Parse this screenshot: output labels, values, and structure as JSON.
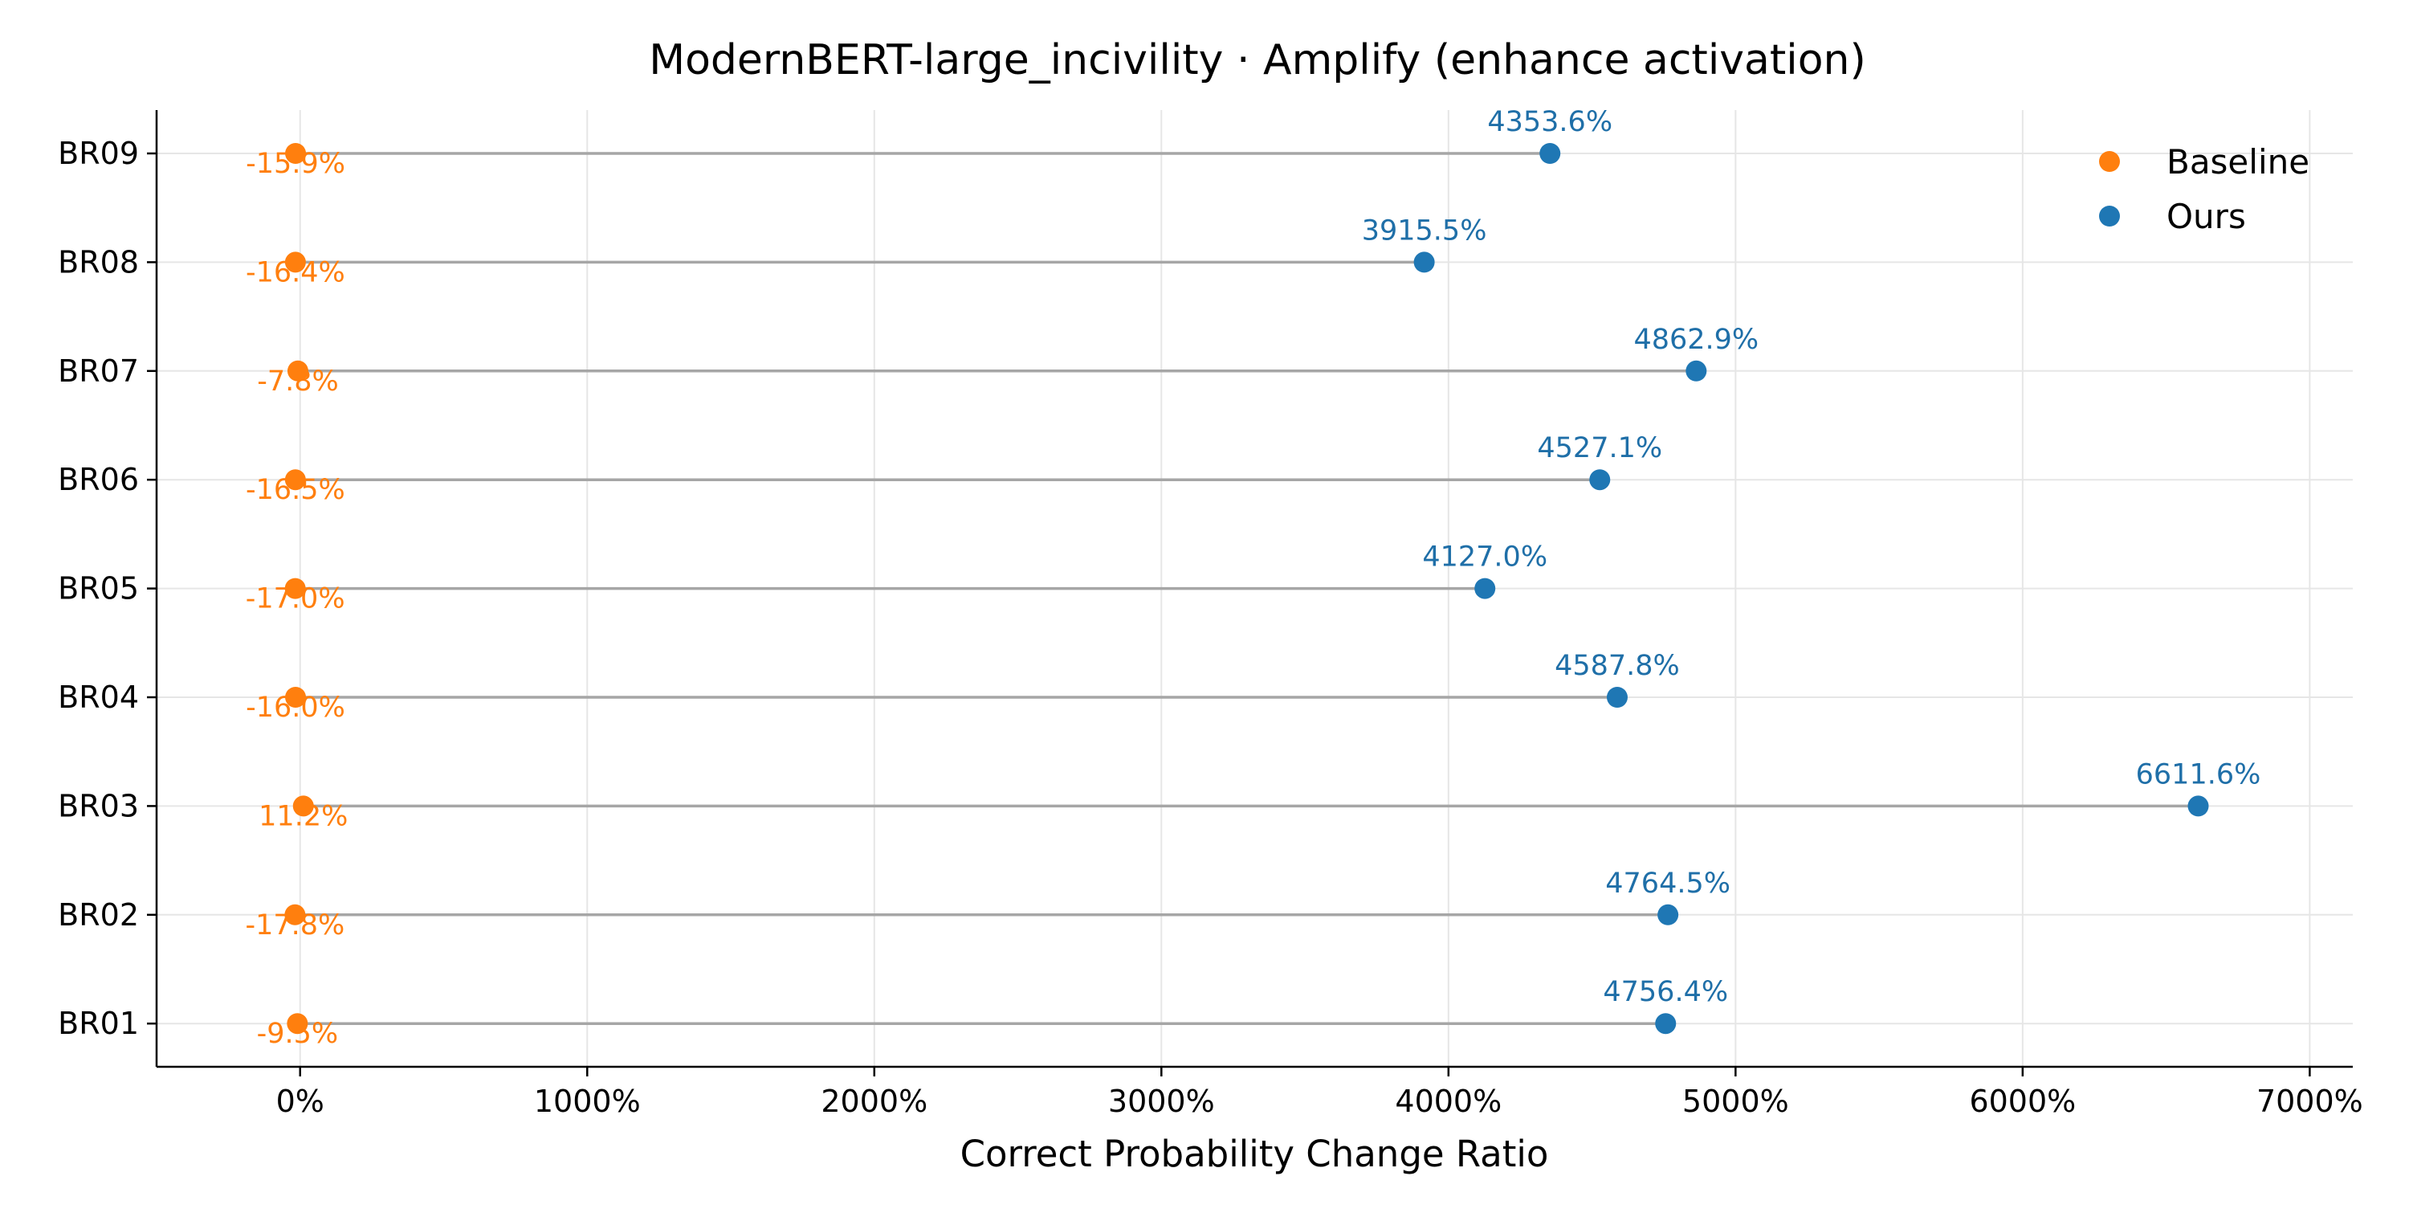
{
  "chart_data": {
    "type": "scatter",
    "subtype": "dumbbell",
    "title": "ModernBERT-large_incivility · Amplify (enhance activation)",
    "xlabel": "Correct Probability Change Ratio",
    "ylabel": "",
    "xlim": [
      -500,
      7150
    ],
    "x_ticks": [
      0,
      1000,
      2000,
      3000,
      4000,
      5000,
      6000,
      7000
    ],
    "x_tick_labels": [
      "0%",
      "1000%",
      "2000%",
      "3000%",
      "4000%",
      "5000%",
      "6000%",
      "7000%"
    ],
    "grid": true,
    "legend_position": "top-right",
    "categories": [
      "BR01",
      "BR02",
      "BR03",
      "BR04",
      "BR05",
      "BR06",
      "BR07",
      "BR08",
      "BR09"
    ],
    "series": [
      {
        "name": "Baseline",
        "color": "#ff7f0e",
        "values": [
          -9.5,
          -17.8,
          11.2,
          -16.0,
          -17.0,
          -16.5,
          -7.8,
          -16.4,
          -15.9
        ],
        "labels": [
          "-9.5%",
          "-17.8%",
          "11.2%",
          "-16.0%",
          "-17.0%",
          "-16.5%",
          "-7.8%",
          "-16.4%",
          "-15.9%"
        ]
      },
      {
        "name": "Ours",
        "color": "#1f77b4",
        "label_color": "#1f6fa8",
        "values": [
          4756.4,
          4764.5,
          6611.6,
          4587.8,
          4127.0,
          4527.1,
          4862.9,
          3915.5,
          4353.6
        ],
        "labels": [
          "4756.4%",
          "4764.5%",
          "6611.6%",
          "4587.8%",
          "4127.0%",
          "4527.1%",
          "4862.9%",
          "3915.5%",
          "4353.6%"
        ]
      }
    ],
    "connector_color": "#a6a6a6"
  }
}
